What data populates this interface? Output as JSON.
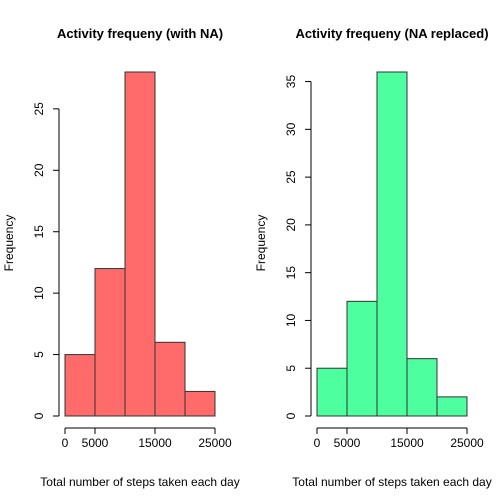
{
  "chart_data": [
    {
      "type": "bar",
      "title": "Activity frequeny (with NA)",
      "xlabel": "Total number of steps taken each day",
      "ylabel": "Frequency",
      "bins": [
        [
          0,
          5000
        ],
        [
          5000,
          10000
        ],
        [
          10000,
          15000
        ],
        [
          15000,
          20000
        ],
        [
          20000,
          25000
        ]
      ],
      "values": [
        5,
        12,
        28,
        6,
        2
      ],
      "xlim": [
        0,
        25000
      ],
      "ylim": [
        0,
        28
      ],
      "xticks": [
        0,
        5000,
        15000,
        25000
      ],
      "xtick_labels": [
        "0",
        "5000",
        "15000",
        "25000"
      ],
      "yticks": [
        0,
        5,
        10,
        15,
        20,
        25
      ],
      "ytick_labels": [
        "0",
        "5",
        "10",
        "15",
        "20",
        "25"
      ],
      "bar_color": "#ff6a6a",
      "grid": false
    },
    {
      "type": "bar",
      "title": "Activity frequeny (NA replaced)",
      "xlabel": "Total number of steps taken each day",
      "ylabel": "Frequency",
      "bins": [
        [
          0,
          5000
        ],
        [
          5000,
          10000
        ],
        [
          10000,
          15000
        ],
        [
          15000,
          20000
        ],
        [
          20000,
          25000
        ]
      ],
      "values": [
        5,
        12,
        36,
        6,
        2
      ],
      "xlim": [
        0,
        25000
      ],
      "ylim": [
        0,
        36
      ],
      "xticks": [
        0,
        5000,
        15000,
        25000
      ],
      "xtick_labels": [
        "0",
        "5000",
        "15000",
        "25000"
      ],
      "yticks": [
        0,
        5,
        10,
        15,
        20,
        25,
        30,
        35
      ],
      "ytick_labels": [
        "0",
        "5",
        "10",
        "15",
        "20",
        "25",
        "30",
        "35"
      ],
      "bar_color": "#4dff9e",
      "grid": false
    }
  ]
}
